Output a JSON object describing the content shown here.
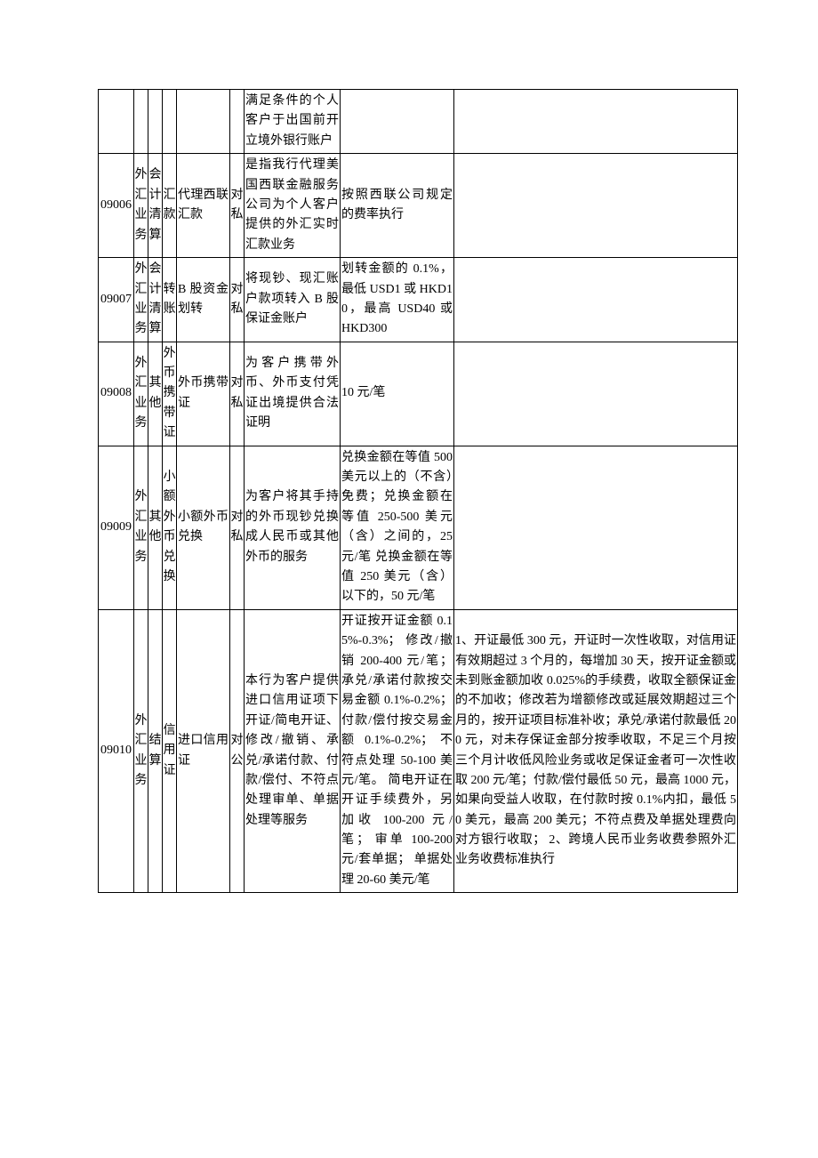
{
  "table": {
    "border_color": "#000000",
    "background": "#ffffff",
    "font_size_pt": 10.5,
    "columns": [
      "code",
      "cat1",
      "cat2",
      "cat3",
      "name",
      "object",
      "desc",
      "price",
      "notes"
    ],
    "rows": [
      {
        "code": "",
        "cat1": "",
        "cat2": "",
        "cat3": "",
        "name": "",
        "object": "",
        "desc": "满足条件的个人客户于出国前开立境外银行账户",
        "price": "",
        "notes": ""
      },
      {
        "code": "09006",
        "cat1": "外汇业务",
        "cat2": "会计清算",
        "cat3": "汇款",
        "name": "代理西联汇款",
        "object": "对私",
        "desc": "是指我行代理美国西联金融服务公司为个人客户提供的外汇实时汇款业务",
        "price": "按照西联公司规定的费率执行",
        "notes": ""
      },
      {
        "code": "09007",
        "cat1": "外汇业务",
        "cat2": "会计清算",
        "cat3": "转账",
        "name": "B 股资金划转",
        "object": "对私",
        "desc": "将现钞、现汇账户款项转入 B 股保证金账户",
        "price": "划转金额的 0.1%，最低 USD1 或 HKD10，最高 USD40 或 HKD300",
        "notes": ""
      },
      {
        "code": "09008",
        "cat1": "外汇业务",
        "cat2": "其他",
        "cat3": "外币携带证",
        "name": "外币携带证",
        "object": "对私",
        "desc": "为客户携带外币、外币支付凭证出境提供合法证明",
        "price": "10 元/笔",
        "notes": ""
      },
      {
        "code": "09009",
        "cat1": "外汇业务",
        "cat2": "其他",
        "cat3": "小额外币兑换",
        "name": "小额外币兑换",
        "object": "对私",
        "desc": "为客户将其手持的外币现钞兑换成人民币或其他外币的服务",
        "price": "兑换金额在等值 500 美元以上的（不含）免费；兑换金额在等值 250-500 美元（含）之间的，25 元/笔 兑换金额在等值 250 美元（含）以下的，50 元/笔",
        "notes": ""
      },
      {
        "code": "09010",
        "cat1": "外汇业务",
        "cat2": "结算",
        "cat3": "信用证",
        "name": "进口信用证",
        "object": "对公",
        "desc": "本行为客户提供进口信用证项下开证/简电开证、修改/撤销、承兑/承诺付款、付款/偿付、不符点处理审单、单据处理等服务",
        "price": "开证按开证金额 0.15%-0.3%；\n修改/撤销 200-400 元/笔；\n承兑/承诺付款按交易金额 0.1%-0.2%；\n付款/偿付按交易金额 0.1%-0.2%；\n不符点处理 50-100 美元/笔。\n简电开证在开证手续费外，另加收 100-200 元/笔；\n审单 100-200 元/套单据；\n单据处理 20-60 美元/笔",
        "notes": "1、开证最低 300 元，开证时一次性收取，对信用证有效期超过 3 个月的，每增加 30 天，按开证金额或未到账金额加收 0.025%的手续费，收取全额保证金的不加收；修改若为增额修改或延展效期超过三个月的，按开证项目标准补收；承兑/承诺付款最低 200 元，对未存保证金部分按季收取，不足三个月按三个月计收低风险业务或收足保证金者可一次性收取 200 元/笔；付款/偿付最低 50 元，最高 1000 元，如果向受益人收取，在付款时按 0.1%内扣，最低 50 美元，最高 200 美元；不符点费及单据处理费向对方银行收取；\n2、跨境人民币业务收费参照外汇业务收费标准执行"
      }
    ]
  }
}
